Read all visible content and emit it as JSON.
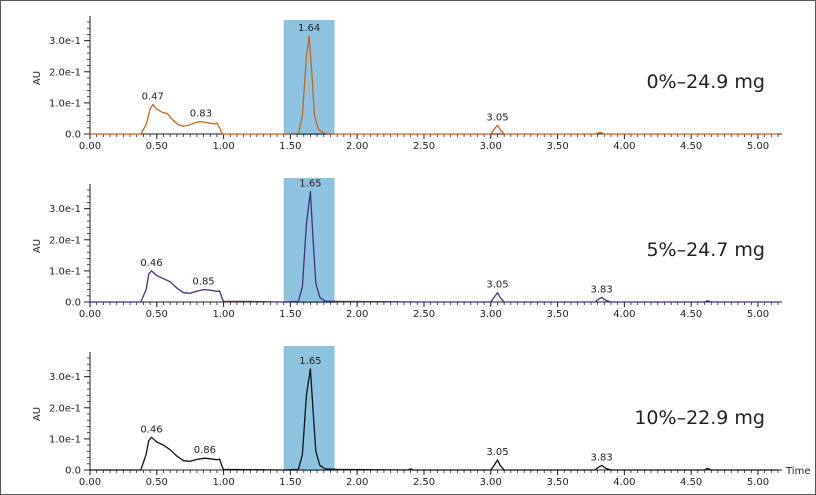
{
  "chart_data": [
    {
      "type": "line",
      "annotation": "0%–24.9 mg",
      "ylabel": "AU",
      "xlabel": "",
      "xlim": [
        0.0,
        5.15
      ],
      "ylim": [
        0.0,
        0.36
      ],
      "color": "#c8641e",
      "y_ticks": [
        {
          "value": 0.0,
          "label": "0.0"
        },
        {
          "value": 0.1,
          "label": "1.0e-1"
        },
        {
          "value": 0.2,
          "label": "2.0e-1"
        },
        {
          "value": 0.3,
          "label": "3.0e-1"
        }
      ],
      "x_ticks": [
        {
          "value": 0.0,
          "label": "0.00"
        },
        {
          "value": 0.5,
          "label": "0.50"
        },
        {
          "value": 1.0,
          "label": "1.00"
        },
        {
          "value": 1.5,
          "label": "1.50"
        },
        {
          "value": 2.0,
          "label": "2.00"
        },
        {
          "value": 2.5,
          "label": "2.50"
        },
        {
          "value": 3.0,
          "label": "3.00"
        },
        {
          "value": 3.5,
          "label": "3.50"
        },
        {
          "value": 4.0,
          "label": "4.00"
        },
        {
          "value": 4.5,
          "label": "4.50"
        },
        {
          "value": 5.0,
          "label": "5.00"
        }
      ],
      "highlight_range": [
        1.45,
        1.83
      ],
      "peaks": [
        {
          "x": 0.47,
          "y": 0.095,
          "label": "0.47"
        },
        {
          "x": 0.83,
          "y": 0.04,
          "label": "0.83"
        },
        {
          "x": 1.64,
          "y": 0.315,
          "label": "1.64"
        },
        {
          "x": 3.05,
          "y": 0.028,
          "label": "3.05"
        }
      ],
      "trace": [
        [
          0.0,
          0.0
        ],
        [
          0.38,
          0.0
        ],
        [
          0.42,
          0.03
        ],
        [
          0.45,
          0.08
        ],
        [
          0.47,
          0.095
        ],
        [
          0.5,
          0.08
        ],
        [
          0.54,
          0.07
        ],
        [
          0.58,
          0.065
        ],
        [
          0.62,
          0.045
        ],
        [
          0.66,
          0.03
        ],
        [
          0.7,
          0.025
        ],
        [
          0.75,
          0.03
        ],
        [
          0.8,
          0.038
        ],
        [
          0.83,
          0.04
        ],
        [
          0.87,
          0.037
        ],
        [
          0.9,
          0.035
        ],
        [
          0.93,
          0.032
        ],
        [
          0.95,
          0.035
        ],
        [
          0.97,
          0.02
        ],
        [
          0.99,
          0.0
        ],
        [
          1.45,
          0.0
        ],
        [
          1.56,
          0.002
        ],
        [
          1.59,
          0.06
        ],
        [
          1.62,
          0.25
        ],
        [
          1.64,
          0.315
        ],
        [
          1.66,
          0.2
        ],
        [
          1.68,
          0.06
        ],
        [
          1.71,
          0.015
        ],
        [
          1.75,
          0.003
        ],
        [
          1.8,
          0.0
        ],
        [
          3.0,
          0.0
        ],
        [
          3.03,
          0.018
        ],
        [
          3.05,
          0.028
        ],
        [
          3.07,
          0.015
        ],
        [
          3.1,
          0.0
        ],
        [
          3.78,
          0.0
        ],
        [
          3.82,
          0.005
        ],
        [
          3.85,
          0.0
        ],
        [
          5.15,
          0.0
        ]
      ]
    },
    {
      "type": "line",
      "annotation": "5%–24.7 mg",
      "ylabel": "AU",
      "xlabel": "",
      "xlim": [
        0.0,
        5.15
      ],
      "ylim": [
        0.0,
        0.36
      ],
      "color": "#4a2c82",
      "y_ticks": [
        {
          "value": 0.0,
          "label": "0.0"
        },
        {
          "value": 0.1,
          "label": "1.0e-1"
        },
        {
          "value": 0.2,
          "label": "2.0e-1"
        },
        {
          "value": 0.3,
          "label": "3.0e-1"
        }
      ],
      "x_ticks": [
        {
          "value": 0.0,
          "label": "0.00"
        },
        {
          "value": 0.5,
          "label": "0.50"
        },
        {
          "value": 1.0,
          "label": "1.00"
        },
        {
          "value": 1.5,
          "label": "1.50"
        },
        {
          "value": 2.0,
          "label": "2.00"
        },
        {
          "value": 2.5,
          "label": "2.50"
        },
        {
          "value": 3.0,
          "label": "3.00"
        },
        {
          "value": 3.5,
          "label": "3.50"
        },
        {
          "value": 4.0,
          "label": "4.00"
        },
        {
          "value": 4.5,
          "label": "4.50"
        },
        {
          "value": 5.0,
          "label": "5.00"
        }
      ],
      "highlight_range": [
        1.45,
        1.83
      ],
      "peaks": [
        {
          "x": 0.46,
          "y": 0.1,
          "label": "0.46"
        },
        {
          "x": 0.85,
          "y": 0.04,
          "label": "0.85"
        },
        {
          "x": 1.65,
          "y": 0.355,
          "label": "1.65"
        },
        {
          "x": 3.05,
          "y": 0.03,
          "label": "3.05"
        },
        {
          "x": 3.83,
          "y": 0.015,
          "label": "3.83"
        }
      ],
      "trace": [
        [
          0.0,
          0.0
        ],
        [
          0.38,
          0.0
        ],
        [
          0.42,
          0.04
        ],
        [
          0.44,
          0.09
        ],
        [
          0.46,
          0.1
        ],
        [
          0.5,
          0.085
        ],
        [
          0.55,
          0.075
        ],
        [
          0.6,
          0.065
        ],
        [
          0.65,
          0.045
        ],
        [
          0.7,
          0.03
        ],
        [
          0.75,
          0.028
        ],
        [
          0.8,
          0.035
        ],
        [
          0.85,
          0.04
        ],
        [
          0.9,
          0.038
        ],
        [
          0.95,
          0.034
        ],
        [
          0.97,
          0.036
        ],
        [
          0.99,
          0.01
        ],
        [
          1.0,
          0.002
        ],
        [
          1.2,
          0.002
        ],
        [
          1.45,
          0.0
        ],
        [
          1.56,
          0.002
        ],
        [
          1.59,
          0.05
        ],
        [
          1.62,
          0.25
        ],
        [
          1.65,
          0.355
        ],
        [
          1.67,
          0.2
        ],
        [
          1.69,
          0.06
        ],
        [
          1.72,
          0.015
        ],
        [
          1.76,
          0.003
        ],
        [
          1.85,
          0.002
        ],
        [
          2.5,
          0.0
        ],
        [
          3.0,
          0.0
        ],
        [
          3.03,
          0.018
        ],
        [
          3.05,
          0.03
        ],
        [
          3.07,
          0.015
        ],
        [
          3.1,
          0.0
        ],
        [
          3.78,
          0.0
        ],
        [
          3.81,
          0.01
        ],
        [
          3.83,
          0.015
        ],
        [
          3.86,
          0.005
        ],
        [
          3.9,
          0.0
        ],
        [
          4.6,
          0.0
        ],
        [
          4.62,
          0.004
        ],
        [
          4.65,
          0.0
        ],
        [
          5.15,
          0.0
        ]
      ]
    },
    {
      "type": "line",
      "annotation": "10%–22.9 mg",
      "ylabel": "AU",
      "xlabel": "Time",
      "xlim": [
        0.0,
        5.15
      ],
      "ylim": [
        0.0,
        0.36
      ],
      "color": "#111111",
      "y_ticks": [
        {
          "value": 0.0,
          "label": "0.0"
        },
        {
          "value": 0.1,
          "label": "1.0e-1"
        },
        {
          "value": 0.2,
          "label": "2.0e-1"
        },
        {
          "value": 0.3,
          "label": "3.0e-1"
        }
      ],
      "x_ticks": [
        {
          "value": 0.0,
          "label": "0.00"
        },
        {
          "value": 0.5,
          "label": "0.50"
        },
        {
          "value": 1.0,
          "label": "1.00"
        },
        {
          "value": 1.5,
          "label": "1.50"
        },
        {
          "value": 2.0,
          "label": "2.00"
        },
        {
          "value": 2.5,
          "label": "2.50"
        },
        {
          "value": 3.0,
          "label": "3.00"
        },
        {
          "value": 3.5,
          "label": "3.50"
        },
        {
          "value": 4.0,
          "label": "4.00"
        },
        {
          "value": 4.5,
          "label": "4.50"
        },
        {
          "value": 5.0,
          "label": "5.00"
        }
      ],
      "highlight_range": [
        1.45,
        1.83
      ],
      "peaks": [
        {
          "x": 0.46,
          "y": 0.105,
          "label": "0.46"
        },
        {
          "x": 0.86,
          "y": 0.038,
          "label": "0.86"
        },
        {
          "x": 1.65,
          "y": 0.325,
          "label": "1.65"
        },
        {
          "x": 3.05,
          "y": 0.032,
          "label": "3.05"
        },
        {
          "x": 3.83,
          "y": 0.015,
          "label": "3.83"
        }
      ],
      "trace": [
        [
          0.0,
          0.0
        ],
        [
          0.38,
          0.0
        ],
        [
          0.42,
          0.05
        ],
        [
          0.44,
          0.095
        ],
        [
          0.46,
          0.105
        ],
        [
          0.5,
          0.09
        ],
        [
          0.55,
          0.08
        ],
        [
          0.6,
          0.065
        ],
        [
          0.65,
          0.045
        ],
        [
          0.7,
          0.03
        ],
        [
          0.75,
          0.028
        ],
        [
          0.8,
          0.034
        ],
        [
          0.86,
          0.038
        ],
        [
          0.9,
          0.036
        ],
        [
          0.95,
          0.033
        ],
        [
          0.97,
          0.035
        ],
        [
          0.99,
          0.01
        ],
        [
          1.0,
          0.002
        ],
        [
          1.45,
          0.0
        ],
        [
          1.56,
          0.002
        ],
        [
          1.59,
          0.05
        ],
        [
          1.62,
          0.24
        ],
        [
          1.65,
          0.325
        ],
        [
          1.67,
          0.19
        ],
        [
          1.69,
          0.06
        ],
        [
          1.72,
          0.015
        ],
        [
          1.76,
          0.004
        ],
        [
          1.85,
          0.002
        ],
        [
          2.38,
          0.0
        ],
        [
          2.4,
          0.004
        ],
        [
          2.42,
          0.0
        ],
        [
          3.0,
          0.0
        ],
        [
          3.03,
          0.018
        ],
        [
          3.05,
          0.032
        ],
        [
          3.07,
          0.015
        ],
        [
          3.1,
          0.0
        ],
        [
          3.78,
          0.0
        ],
        [
          3.81,
          0.01
        ],
        [
          3.83,
          0.015
        ],
        [
          3.86,
          0.005
        ],
        [
          3.9,
          0.0
        ],
        [
          4.6,
          0.0
        ],
        [
          4.62,
          0.005
        ],
        [
          4.65,
          0.0
        ],
        [
          5.15,
          0.0
        ]
      ]
    }
  ]
}
